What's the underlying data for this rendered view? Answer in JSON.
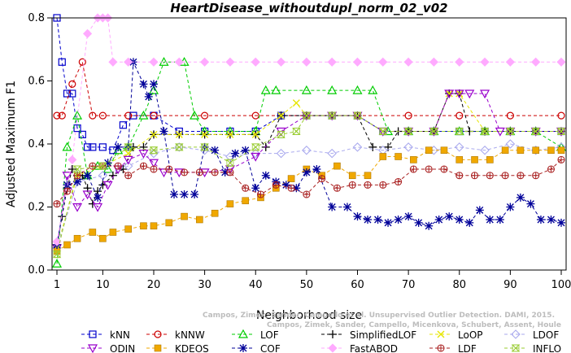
{
  "chart_data": {
    "type": "line",
    "title": "HeartDisease_withoutdupl_norm_02_v02",
    "xlabel": "Neighborhood size",
    "ylabel": "Adjusted Maximum F1",
    "xlim": [
      1,
      100
    ],
    "ylim": [
      0.0,
      0.8
    ],
    "xticks": [
      1,
      10,
      20,
      30,
      40,
      50,
      60,
      70,
      80,
      90,
      100
    ],
    "yticks": [
      0.0,
      0.2,
      0.4,
      0.6,
      0.8
    ],
    "grid": false,
    "legend_position": "bottom",
    "series": [
      {
        "name": "kNN",
        "color": "#0000cc",
        "marker": "square",
        "x": [
          1,
          2,
          3,
          4,
          5,
          6,
          7,
          8,
          10,
          12,
          14,
          16,
          20,
          25,
          30,
          35,
          40,
          45,
          50,
          55,
          60,
          65,
          70,
          75,
          80,
          85,
          90,
          95,
          100
        ],
        "y": [
          0.8,
          0.66,
          0.56,
          0.56,
          0.45,
          0.43,
          0.39,
          0.39,
          0.39,
          0.38,
          0.46,
          0.49,
          0.49,
          0.44,
          0.44,
          0.44,
          0.44,
          0.49,
          0.49,
          0.49,
          0.49,
          0.44,
          0.44,
          0.44,
          0.44,
          0.44,
          0.44,
          0.44,
          0.44
        ]
      },
      {
        "name": "kNNW",
        "color": "#cc0000",
        "marker": "circle",
        "x": [
          1,
          2,
          4,
          6,
          8,
          10,
          15,
          20,
          30,
          40,
          50,
          60,
          70,
          80,
          90,
          100
        ],
        "y": [
          0.49,
          0.49,
          0.59,
          0.66,
          0.49,
          0.49,
          0.49,
          0.49,
          0.49,
          0.49,
          0.49,
          0.49,
          0.49,
          0.49,
          0.49,
          0.49
        ]
      },
      {
        "name": "LOF",
        "color": "#00cc00",
        "marker": "triangle",
        "x": [
          1,
          3,
          5,
          7,
          9,
          11,
          13,
          15,
          18,
          20,
          22,
          26,
          28,
          30,
          35,
          40,
          42,
          44,
          50,
          55,
          60,
          63,
          66,
          70,
          75,
          80,
          85,
          90,
          95,
          100
        ],
        "y": [
          0.02,
          0.39,
          0.49,
          0.3,
          0.33,
          0.32,
          0.38,
          0.39,
          0.49,
          0.57,
          0.66,
          0.66,
          0.49,
          0.44,
          0.44,
          0.44,
          0.57,
          0.57,
          0.57,
          0.57,
          0.57,
          0.57,
          0.44,
          0.44,
          0.44,
          0.44,
          0.44,
          0.44,
          0.44,
          0.39
        ]
      },
      {
        "name": "SimplifiedLOF",
        "color": "#000000",
        "marker": "plus",
        "x": [
          1,
          2,
          3,
          4,
          5,
          6,
          7,
          8,
          9,
          10,
          12,
          14,
          16,
          18,
          20,
          25,
          30,
          35,
          40,
          42,
          45,
          50,
          55,
          60,
          63,
          66,
          68,
          70,
          75,
          78,
          80,
          82,
          85,
          90,
          95,
          100
        ],
        "y": [
          0.08,
          0.17,
          0.26,
          0.32,
          0.3,
          0.3,
          0.26,
          0.21,
          0.25,
          0.27,
          0.3,
          0.32,
          0.39,
          0.39,
          0.43,
          0.43,
          0.43,
          0.43,
          0.43,
          0.39,
          0.49,
          0.49,
          0.49,
          0.49,
          0.39,
          0.39,
          0.44,
          0.44,
          0.44,
          0.56,
          0.56,
          0.44,
          0.44,
          0.44,
          0.44,
          0.44
        ]
      },
      {
        "name": "LoOP",
        "color": "#e6e600",
        "marker": "x",
        "x": [
          1,
          5,
          10,
          15,
          20,
          25,
          30,
          35,
          40,
          45,
          48,
          50,
          55,
          60,
          65,
          70,
          75,
          78,
          80,
          85,
          90,
          95,
          100
        ],
        "y": [
          0.07,
          0.3,
          0.33,
          0.37,
          0.43,
          0.43,
          0.43,
          0.43,
          0.43,
          0.49,
          0.53,
          0.49,
          0.49,
          0.49,
          0.44,
          0.44,
          0.44,
          0.56,
          0.56,
          0.44,
          0.44,
          0.44,
          0.44
        ]
      },
      {
        "name": "LDOF",
        "color": "#aaaaee",
        "marker": "diamond",
        "x": [
          1,
          5,
          10,
          15,
          20,
          25,
          30,
          35,
          40,
          45,
          50,
          55,
          60,
          65,
          70,
          75,
          80,
          85,
          90,
          95,
          100
        ],
        "y": [
          0.07,
          0.28,
          0.3,
          0.33,
          0.37,
          0.39,
          0.38,
          0.36,
          0.37,
          0.37,
          0.38,
          0.37,
          0.39,
          0.38,
          0.39,
          0.38,
          0.39,
          0.38,
          0.4,
          0.38,
          0.39
        ]
      },
      {
        "name": "ODIN",
        "color": "#9900cc",
        "marker": "triangle-down",
        "x": [
          1,
          3,
          5,
          7,
          9,
          11,
          13,
          15,
          18,
          20,
          22,
          25,
          30,
          35,
          40,
          45,
          50,
          55,
          60,
          65,
          70,
          75,
          78,
          80,
          82,
          85,
          88,
          90,
          95,
          100
        ],
        "y": [
          0.07,
          0.3,
          0.2,
          0.24,
          0.2,
          0.27,
          0.32,
          0.35,
          0.37,
          0.34,
          0.31,
          0.31,
          0.31,
          0.32,
          0.36,
          0.44,
          0.49,
          0.49,
          0.49,
          0.44,
          0.44,
          0.44,
          0.56,
          0.56,
          0.56,
          0.56,
          0.44,
          0.44,
          0.44,
          0.44
        ]
      },
      {
        "name": "KDEOS",
        "color": "#f0a800",
        "marker": "square-filled",
        "x": [
          1,
          3,
          5,
          8,
          10,
          12,
          15,
          18,
          20,
          23,
          26,
          29,
          32,
          35,
          38,
          41,
          44,
          47,
          50,
          53,
          56,
          59,
          62,
          65,
          68,
          71,
          74,
          77,
          80,
          83,
          86,
          89,
          92,
          95,
          98,
          100
        ],
        "y": [
          0.06,
          0.08,
          0.1,
          0.12,
          0.1,
          0.12,
          0.13,
          0.14,
          0.14,
          0.15,
          0.17,
          0.16,
          0.18,
          0.21,
          0.22,
          0.23,
          0.26,
          0.29,
          0.32,
          0.3,
          0.33,
          0.3,
          0.3,
          0.36,
          0.36,
          0.35,
          0.38,
          0.38,
          0.35,
          0.35,
          0.35,
          0.38,
          0.38,
          0.38,
          0.38,
          0.38
        ]
      },
      {
        "name": "COF",
        "color": "#000099",
        "marker": "asterisk",
        "x": [
          1,
          3,
          5,
          7,
          9,
          11,
          13,
          15,
          16,
          18,
          19,
          20,
          22,
          24,
          26,
          28,
          30,
          32,
          34,
          36,
          38,
          40,
          42,
          44,
          46,
          48,
          50,
          52,
          55,
          58,
          60,
          62,
          64,
          66,
          68,
          70,
          72,
          74,
          76,
          78,
          80,
          82,
          84,
          86,
          88,
          90,
          92,
          94,
          96,
          98,
          100
        ],
        "y": [
          0.08,
          0.27,
          0.28,
          0.3,
          0.23,
          0.34,
          0.39,
          0.39,
          0.66,
          0.59,
          0.55,
          0.59,
          0.44,
          0.24,
          0.24,
          0.24,
          0.39,
          0.38,
          0.31,
          0.37,
          0.38,
          0.26,
          0.3,
          0.28,
          0.27,
          0.26,
          0.31,
          0.32,
          0.2,
          0.2,
          0.17,
          0.16,
          0.16,
          0.15,
          0.16,
          0.17,
          0.15,
          0.14,
          0.16,
          0.17,
          0.16,
          0.15,
          0.19,
          0.16,
          0.16,
          0.2,
          0.23,
          0.21,
          0.16,
          0.16,
          0.15
        ]
      },
      {
        "name": "FastABOD",
        "color": "#ffaaff",
        "marker": "diamond-filled",
        "x": [
          1,
          4,
          7,
          9,
          10,
          11,
          12,
          15,
          20,
          25,
          30,
          35,
          40,
          45,
          50,
          55,
          60,
          65,
          70,
          75,
          80,
          85,
          90,
          95,
          100
        ],
        "y": [
          0.09,
          0.35,
          0.75,
          0.8,
          0.8,
          0.8,
          0.66,
          0.66,
          0.66,
          0.66,
          0.66,
          0.66,
          0.66,
          0.66,
          0.66,
          0.66,
          0.66,
          0.66,
          0.66,
          0.66,
          0.66,
          0.66,
          0.66,
          0.66,
          0.66
        ]
      },
      {
        "name": "LDF",
        "color": "#aa2222",
        "marker": "circle-plus",
        "x": [
          1,
          3,
          5,
          8,
          10,
          13,
          15,
          18,
          20,
          23,
          26,
          29,
          32,
          35,
          38,
          41,
          44,
          47,
          50,
          53,
          56,
          59,
          62,
          65,
          68,
          71,
          74,
          77,
          80,
          83,
          86,
          89,
          92,
          95,
          98,
          100
        ],
        "y": [
          0.21,
          0.25,
          0.3,
          0.33,
          0.33,
          0.33,
          0.3,
          0.33,
          0.32,
          0.32,
          0.31,
          0.31,
          0.31,
          0.31,
          0.26,
          0.24,
          0.27,
          0.26,
          0.24,
          0.29,
          0.26,
          0.27,
          0.27,
          0.27,
          0.28,
          0.32,
          0.32,
          0.32,
          0.3,
          0.3,
          0.3,
          0.3,
          0.3,
          0.3,
          0.32,
          0.35
        ]
      },
      {
        "name": "INFLO",
        "color": "#99cc33",
        "marker": "hourglass",
        "x": [
          1,
          5,
          10,
          15,
          20,
          25,
          30,
          35,
          40,
          45,
          48,
          50,
          55,
          60,
          65,
          70,
          75,
          80,
          85,
          90,
          95,
          100
        ],
        "y": [
          0.05,
          0.32,
          0.33,
          0.39,
          0.38,
          0.39,
          0.39,
          0.34,
          0.39,
          0.43,
          0.44,
          0.49,
          0.49,
          0.49,
          0.44,
          0.44,
          0.44,
          0.44,
          0.44,
          0.44,
          0.44,
          0.44
        ]
      }
    ]
  },
  "watermark": {
    "line1": "Campos, Zimek, Sander, Campello et al. Unsupervised Outlier Detection. DAMI, 2015.",
    "line2": "Campos, Zimek, Sander, Campello, Micenkova, Schubert, Assent, Houle"
  }
}
